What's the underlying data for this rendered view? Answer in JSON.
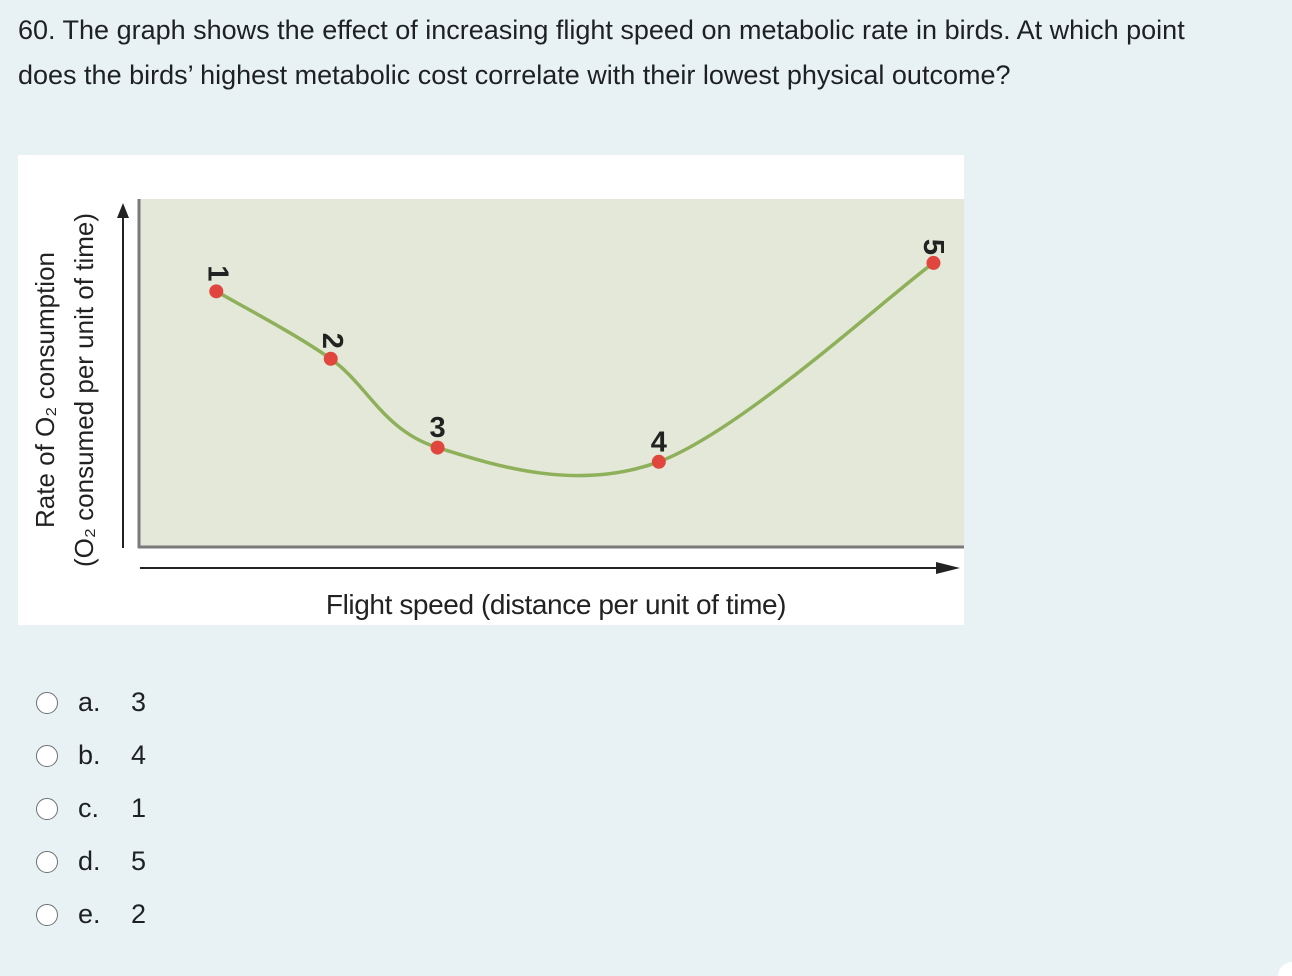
{
  "question": {
    "text": "60. The graph shows the effect of increasing flight speed on metabolic rate in birds. At which point does the birds’ highest metabolic cost correlate with their lowest physical outcome?"
  },
  "chart_data": {
    "type": "line",
    "ylabel_line1": "Rate of O₂ consumption",
    "ylabel_line2": "(O₂ consumed per unit of time)",
    "xlabel": "Flight speed (distance per unit of time)",
    "grid": false,
    "colors": {
      "curve": "#8eb05a",
      "point": "#e0463e",
      "plot_bg": "#e3e8d8"
    },
    "points": [
      {
        "label": "1",
        "x": 1.0,
        "y": 7.2
      },
      {
        "label": "2",
        "x": 2.5,
        "y": 5.3
      },
      {
        "label": "3",
        "x": 3.9,
        "y": 2.8
      },
      {
        "label": "4",
        "x": 6.8,
        "y": 2.4
      },
      {
        "label": "5",
        "x": 10.4,
        "y": 8.0
      }
    ],
    "xlim": [
      0,
      10.8
    ],
    "ylim": [
      0,
      9.8
    ]
  },
  "options": [
    {
      "letter": "a.",
      "value": "3"
    },
    {
      "letter": "b.",
      "value": "4"
    },
    {
      "letter": "c.",
      "value": "1"
    },
    {
      "letter": "d.",
      "value": "5"
    },
    {
      "letter": "e.",
      "value": "2"
    }
  ]
}
